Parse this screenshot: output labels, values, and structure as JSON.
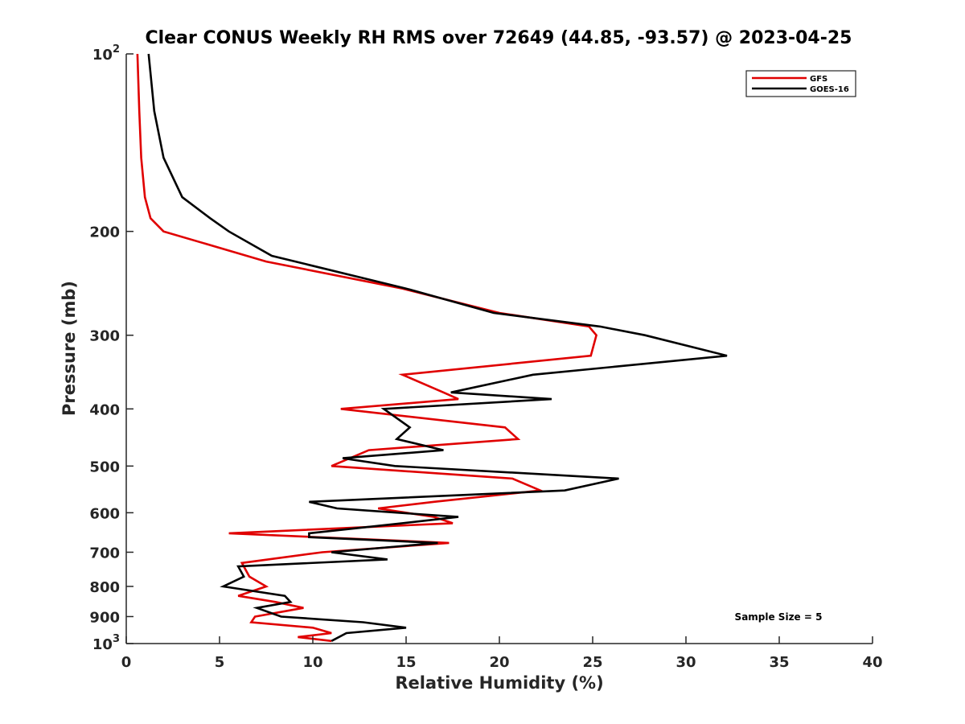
{
  "chart_data": {
    "type": "line",
    "title": "Clear CONUS Weekly RH RMS over 72649 (44.85, -93.57) @ 2023-04-25",
    "xlabel": "Relative Humidity (%)",
    "ylabel": "Pressure (mb)",
    "xlim": [
      0,
      40
    ],
    "ylim": [
      100,
      1000
    ],
    "yscale": "log",
    "y_reversed": true,
    "grid": false,
    "legend_position": "top-right",
    "x_ticks": [
      0,
      5,
      10,
      15,
      20,
      25,
      30,
      35,
      40
    ],
    "x_tick_labels": [
      "0",
      "5",
      "10",
      "15",
      "20",
      "25",
      "30",
      "35",
      "40"
    ],
    "y_ticks": [
      100,
      200,
      300,
      400,
      500,
      600,
      700,
      800,
      900,
      1000
    ],
    "y_tick_labels": [
      {
        "base": "10",
        "exp": "2"
      },
      {
        "base": "200",
        "exp": ""
      },
      {
        "base": "300",
        "exp": ""
      },
      {
        "base": "400",
        "exp": ""
      },
      {
        "base": "500",
        "exp": ""
      },
      {
        "base": "600",
        "exp": ""
      },
      {
        "base": "700",
        "exp": ""
      },
      {
        "base": "800",
        "exp": ""
      },
      {
        "base": "900",
        "exp": ""
      },
      {
        "base": "10",
        "exp": "3"
      }
    ],
    "annotation": "Sample Size = 5",
    "series": [
      {
        "name": "GFS",
        "color": "#e00000",
        "points": [
          [
            0.6,
            100
          ],
          [
            0.7,
            125
          ],
          [
            0.8,
            150
          ],
          [
            1.0,
            175
          ],
          [
            1.3,
            190
          ],
          [
            2.0,
            200
          ],
          [
            7.5,
            225
          ],
          [
            14.8,
            250
          ],
          [
            20.0,
            275
          ],
          [
            24.8,
            290
          ],
          [
            25.2,
            300
          ],
          [
            24.9,
            325
          ],
          [
            14.8,
            350
          ],
          [
            17.0,
            375
          ],
          [
            17.8,
            385
          ],
          [
            11.5,
            400
          ],
          [
            20.3,
            430
          ],
          [
            21.0,
            450
          ],
          [
            13.0,
            470
          ],
          [
            11.0,
            500
          ],
          [
            20.7,
            525
          ],
          [
            22.2,
            550
          ],
          [
            16.5,
            575
          ],
          [
            13.5,
            590
          ],
          [
            16.5,
            610
          ],
          [
            17.5,
            625
          ],
          [
            5.5,
            650
          ],
          [
            17.3,
            675
          ],
          [
            10.5,
            700
          ],
          [
            6.2,
            730
          ],
          [
            6.6,
            770
          ],
          [
            7.5,
            800
          ],
          [
            6.0,
            830
          ],
          [
            8.0,
            850
          ],
          [
            9.5,
            870
          ],
          [
            6.9,
            900
          ],
          [
            6.7,
            920
          ],
          [
            10.0,
            940
          ],
          [
            11.0,
            960
          ],
          [
            9.2,
            975
          ],
          [
            11.0,
            990
          ]
        ]
      },
      {
        "name": "GOES-16",
        "color": "#000000",
        "points": [
          [
            1.2,
            100
          ],
          [
            1.5,
            125
          ],
          [
            2.0,
            150
          ],
          [
            3.0,
            175
          ],
          [
            4.5,
            190
          ],
          [
            5.5,
            200
          ],
          [
            7.8,
            220
          ],
          [
            15.0,
            250
          ],
          [
            19.7,
            275
          ],
          [
            25.4,
            290
          ],
          [
            27.8,
            300
          ],
          [
            32.2,
            325
          ],
          [
            21.8,
            350
          ],
          [
            17.4,
            375
          ],
          [
            22.8,
            385
          ],
          [
            13.8,
            400
          ],
          [
            15.2,
            430
          ],
          [
            14.5,
            450
          ],
          [
            17.0,
            470
          ],
          [
            11.6,
            485
          ],
          [
            14.4,
            500
          ],
          [
            26.4,
            525
          ],
          [
            23.5,
            550
          ],
          [
            9.8,
            575
          ],
          [
            11.3,
            590
          ],
          [
            17.8,
            610
          ],
          [
            14.8,
            625
          ],
          [
            9.8,
            650
          ],
          [
            9.8,
            660
          ],
          [
            16.7,
            675
          ],
          [
            11.0,
            700
          ],
          [
            14.0,
            720
          ],
          [
            6.0,
            740
          ],
          [
            6.3,
            770
          ],
          [
            5.2,
            800
          ],
          [
            8.5,
            830
          ],
          [
            8.8,
            850
          ],
          [
            7.0,
            870
          ],
          [
            8.3,
            900
          ],
          [
            12.7,
            920
          ],
          [
            15.0,
            940
          ],
          [
            11.8,
            960
          ],
          [
            11.0,
            990
          ]
        ]
      }
    ]
  }
}
